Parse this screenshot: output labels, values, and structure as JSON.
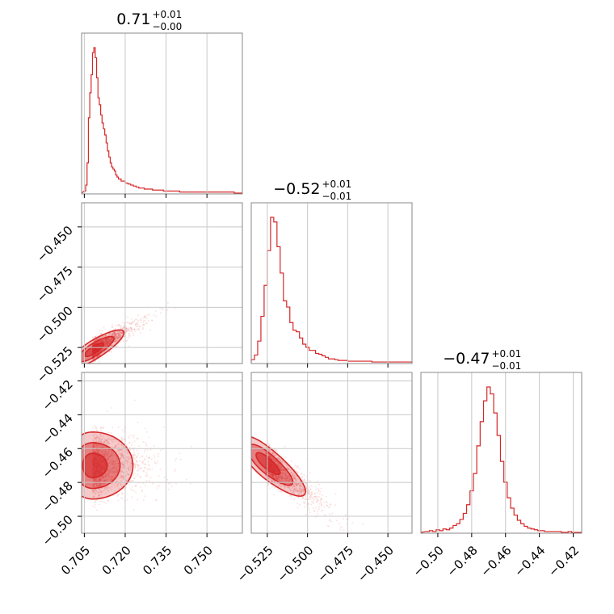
{
  "chart_data": {
    "type": "corner",
    "color": "#d62728",
    "grid": true,
    "parameters": [
      {
        "range": [
          0.704,
          0.763
        ],
        "ticks": [
          0.705,
          0.72,
          0.735,
          0.75
        ],
        "tick_labels": [
          "0.705",
          "0.720",
          "0.735",
          "0.750"
        ]
      },
      {
        "range": [
          -0.535,
          -0.435
        ],
        "ticks": [
          -0.525,
          -0.5,
          -0.475,
          -0.45
        ],
        "tick_labels": [
          "−0.525",
          "−0.500",
          "−0.475",
          "−0.450"
        ]
      },
      {
        "range": [
          -0.51,
          -0.415
        ],
        "ticks": [
          -0.5,
          -0.48,
          -0.46,
          -0.44,
          -0.42
        ],
        "tick_labels": [
          "−0.50",
          "−0.48",
          "−0.46",
          "−0.44",
          "−0.42"
        ]
      }
    ],
    "titles": [
      {
        "main": "0.71",
        "upper": "+0.01",
        "lower": "−0.00"
      },
      {
        "main": "−0.52",
        "upper": "+0.01",
        "lower": "−0.01"
      },
      {
        "main": "−0.47",
        "upper": "+0.01",
        "lower": "−0.01"
      }
    ],
    "histograms": [
      {
        "x": [
          0.705,
          0.7055,
          0.706,
          0.7065,
          0.707,
          0.7075,
          0.708,
          0.7085,
          0.709,
          0.7095,
          0.71,
          0.7105,
          0.711,
          0.7115,
          0.712,
          0.7125,
          0.713,
          0.7135,
          0.714,
          0.7145,
          0.715,
          0.7155,
          0.716,
          0.7165,
          0.717,
          0.7175,
          0.718,
          0.7185,
          0.719,
          0.72,
          0.721,
          0.722,
          0.723,
          0.724,
          0.725,
          0.726,
          0.727,
          0.728,
          0.73,
          0.732,
          0.734,
          0.736,
          0.738,
          0.74,
          0.742,
          0.744,
          0.746,
          0.748,
          0.75,
          0.755,
          0.76
        ],
        "counts": [
          2,
          8,
          30,
          75,
          100,
          118,
          140,
          145,
          135,
          115,
          95,
          88,
          78,
          70,
          64,
          58,
          50,
          42,
          36,
          30,
          26,
          24,
          22,
          18,
          16,
          14,
          14,
          12,
          12,
          10,
          9,
          8,
          7,
          6,
          5,
          5,
          4,
          4,
          3,
          3,
          2,
          2,
          2,
          1,
          1,
          1,
          1,
          1,
          1,
          1,
          0
        ]
      },
      {
        "x": [
          -0.535,
          -0.533,
          -0.531,
          -0.529,
          -0.527,
          -0.525,
          -0.523,
          -0.521,
          -0.519,
          -0.517,
          -0.515,
          -0.513,
          -0.511,
          -0.509,
          -0.507,
          -0.505,
          -0.503,
          -0.501,
          -0.499,
          -0.497,
          -0.495,
          -0.493,
          -0.491,
          -0.489,
          -0.487,
          -0.485,
          -0.483,
          -0.481,
          -0.479,
          -0.475,
          -0.47,
          -0.465,
          -0.46,
          -0.455,
          -0.45,
          -0.445,
          -0.44,
          -0.436
        ],
        "counts": [
          4,
          10,
          28,
          60,
          100,
          145,
          188,
          182,
          150,
          116,
          80,
          72,
          52,
          42,
          40,
          32,
          24,
          20,
          16,
          16,
          12,
          11,
          9,
          7,
          5,
          5,
          4,
          3,
          3,
          2,
          2,
          2,
          1,
          1,
          1,
          1,
          1,
          1
        ]
      },
      {
        "x": [
          -0.507,
          -0.505,
          -0.503,
          -0.501,
          -0.499,
          -0.497,
          -0.495,
          -0.493,
          -0.491,
          -0.489,
          -0.487,
          -0.485,
          -0.483,
          -0.481,
          -0.479,
          -0.477,
          -0.475,
          -0.473,
          -0.471,
          -0.469,
          -0.467,
          -0.465,
          -0.463,
          -0.461,
          -0.459,
          -0.457,
          -0.455,
          -0.453,
          -0.451,
          -0.449,
          -0.447,
          -0.445,
          -0.443,
          -0.441,
          -0.439,
          -0.437,
          -0.435,
          -0.433,
          -0.431,
          -0.429,
          -0.427,
          -0.425,
          -0.423,
          -0.421,
          -0.419,
          -0.417
        ],
        "counts": [
          1,
          2,
          1,
          3,
          2,
          4,
          3,
          5,
          8,
          10,
          15,
          22,
          32,
          48,
          68,
          100,
          128,
          152,
          168,
          160,
          138,
          112,
          82,
          58,
          40,
          28,
          20,
          14,
          10,
          7,
          5,
          4,
          3,
          2,
          2,
          1,
          1,
          1,
          1,
          1,
          0,
          0,
          1,
          0,
          0,
          0
        ]
      }
    ],
    "pairs": [
      {
        "x_param": 0,
        "y_param": 1,
        "samples": 1800,
        "mean": [
          0.708,
          -0.527
        ],
        "std": [
          0.0035,
          0.0045
        ],
        "correlation": 0.75,
        "levels": [
          0.39,
          0.86,
          0.99
        ]
      },
      {
        "x_param": 0,
        "y_param": 2,
        "samples": 1800,
        "mean": [
          0.708,
          -0.47
        ],
        "std": [
          0.0045,
          0.009
        ],
        "correlation": 0.0,
        "levels": [
          0.39,
          0.86,
          0.99
        ]
      },
      {
        "x_param": 1,
        "y_param": 2,
        "samples": 1800,
        "mean": [
          -0.526,
          -0.468
        ],
        "std": [
          0.0075,
          0.007
        ],
        "correlation": -0.75,
        "levels": [
          0.39,
          0.86,
          0.99
        ]
      }
    ]
  }
}
